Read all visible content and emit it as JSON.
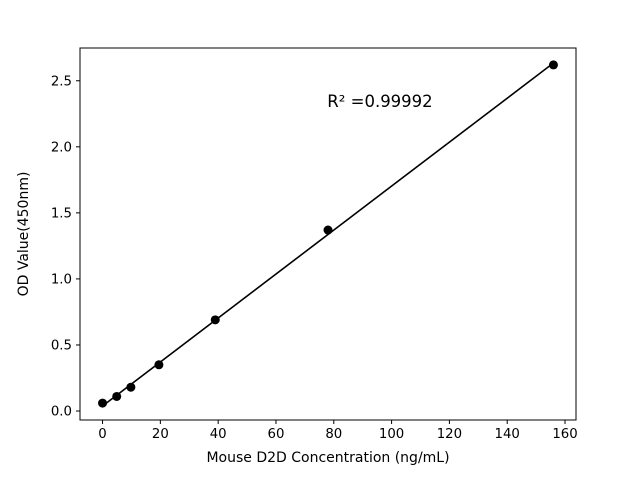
{
  "chart_data": {
    "type": "scatter",
    "title": "",
    "xlabel": "Mouse D2D Concentration (ng/mL)",
    "ylabel": "OD Value(450nm)",
    "annotation": "R² =0.99992",
    "x": [
      0,
      4.9,
      9.8,
      19.5,
      39,
      78,
      156
    ],
    "y": [
      0.06,
      0.11,
      0.18,
      0.35,
      0.69,
      1.37,
      2.62
    ],
    "fit": "linear",
    "xlim": [
      -7.8,
      163.8
    ],
    "ylim": [
      -0.068,
      2.748
    ],
    "xticks": [
      0,
      20,
      40,
      60,
      80,
      100,
      120,
      140,
      160
    ],
    "xtick_labels": [
      "0",
      "20",
      "40",
      "60",
      "80",
      "100",
      "120",
      "140",
      "160"
    ],
    "yticks": [
      0.0,
      0.5,
      1.0,
      1.5,
      2.0,
      2.5
    ],
    "ytick_labels": [
      "0.0",
      "0.5",
      "1.0",
      "1.5",
      "2.0",
      "2.5"
    ],
    "grid": false,
    "legend": null,
    "marker_color": "#000000",
    "line_color": "#000000",
    "background": "#ffffff"
  }
}
